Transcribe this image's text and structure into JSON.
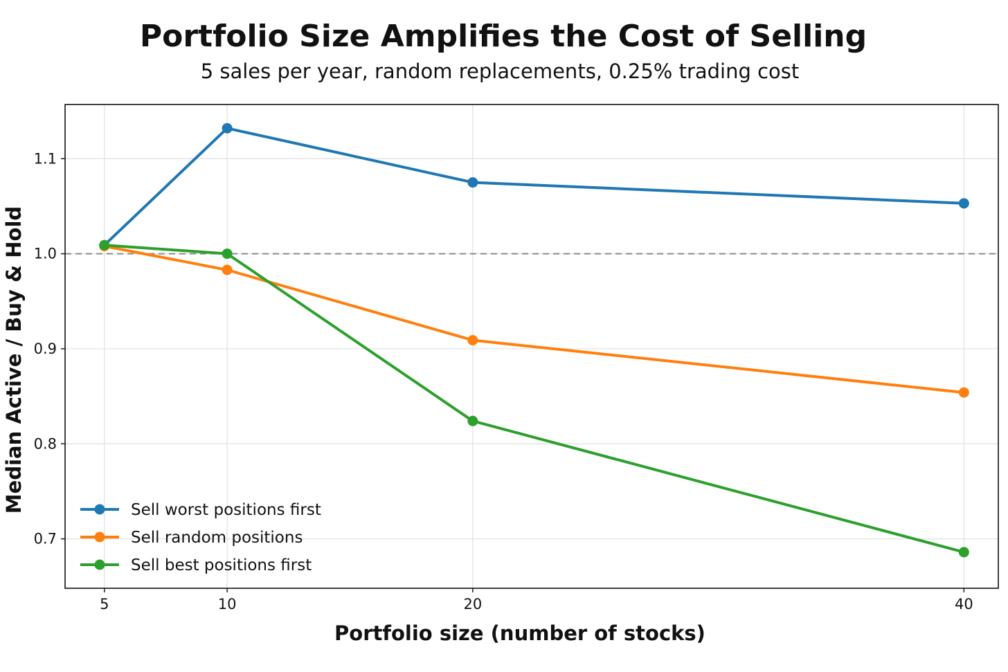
{
  "chart_data": {
    "type": "line",
    "title": "Portfolio Size Amplifies the Cost of Selling",
    "subtitle": "5 sales per year, random replacements, 0.25% trading cost",
    "xlabel": "Portfolio size (number of stocks)",
    "ylabel": "Median Active / Buy & Hold",
    "x": [
      5,
      10,
      20,
      40
    ],
    "xticks": [
      5,
      10,
      20,
      40
    ],
    "yticks": [
      0.7,
      0.8,
      0.9,
      1.0,
      1.1
    ],
    "ytick_labels": [
      "0.7",
      "0.8",
      "0.9",
      "1.0",
      "1.1"
    ],
    "xlim": [
      3.4,
      41.4
    ],
    "ylim": [
      0.648,
      1.157
    ],
    "grid": true,
    "reference_line": {
      "y": 1.0,
      "style": "dashed",
      "color": "#888888"
    },
    "legend_position": "bottom-left",
    "series": [
      {
        "name": "Sell worst positions first",
        "color": "#1f77b4",
        "values": [
          1.009,
          1.132,
          1.075,
          1.053
        ]
      },
      {
        "name": "Sell random positions",
        "color": "#ff7f0e",
        "values": [
          1.008,
          0.983,
          0.909,
          0.854
        ]
      },
      {
        "name": "Sell best positions first",
        "color": "#2ca02c",
        "values": [
          1.009,
          1.0,
          0.824,
          0.686
        ]
      }
    ]
  }
}
